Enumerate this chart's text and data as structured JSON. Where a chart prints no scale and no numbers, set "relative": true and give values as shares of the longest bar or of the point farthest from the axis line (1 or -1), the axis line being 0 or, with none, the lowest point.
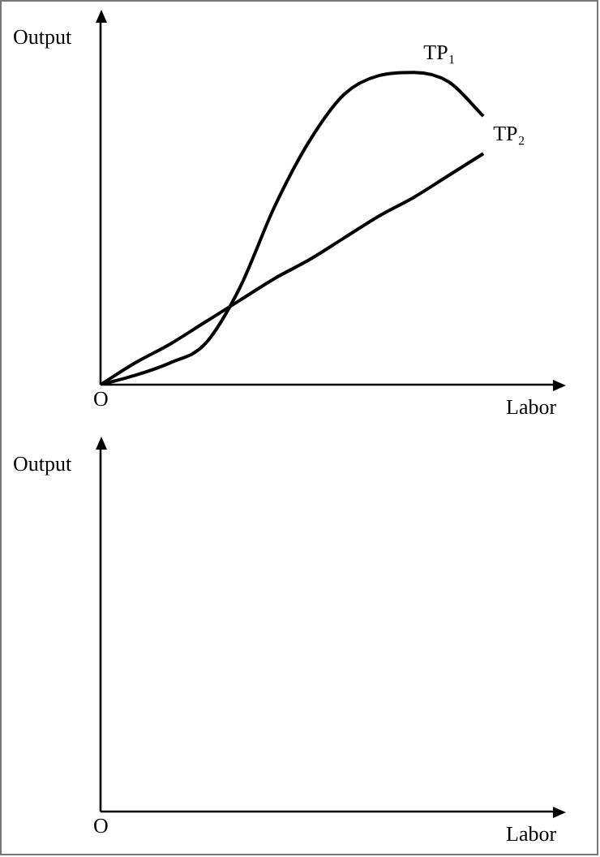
{
  "chart_data": [
    {
      "type": "line",
      "relative": true,
      "xlabel": "Labor",
      "ylabel": "Output",
      "annotations": [
        "O"
      ],
      "marker": "none",
      "categories": [
        null,
        null,
        null,
        null,
        null,
        null,
        null,
        null,
        null,
        null,
        null,
        null,
        null,
        null
      ],
      "series": [
        {
          "name": "TP₁",
          "color": "#000000",
          "values": [
            0,
            0.03,
            0.07,
            0.13,
            0.31,
            0.57,
            0.78,
            0.93,
            0.99,
            1,
            0.97,
            0.86,
            null,
            null
          ]
        },
        {
          "name": "TP₂",
          "color": "#000000",
          "values": [
            0,
            0.07,
            0.13,
            0.2,
            0.27,
            0.34,
            0.4,
            0.47,
            0.54,
            0.6,
            0.67,
            0.74,
            null,
            null
          ]
        }
      ]
    },
    {
      "type": "other",
      "xlabel": "Labor",
      "ylabel": "Output",
      "annotations": [
        "O"
      ]
    }
  ]
}
